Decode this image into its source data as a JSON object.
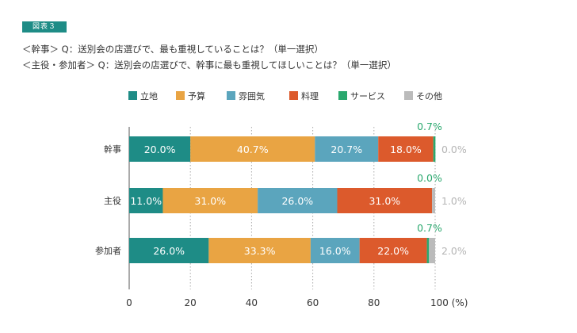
{
  "figure_label": "図表３",
  "questions": [
    "＜幹事＞ Q：送別会の店選びで、最も重視していることは？（単一選択）",
    "＜主役・参加者＞ Q：送別会の店選びで、幹事に最も重視してほしいことは？（単一選択）"
  ],
  "chart_data": {
    "type": "bar",
    "orientation": "horizontal",
    "stacked": true,
    "categories": [
      "幹事",
      "主役",
      "参加者"
    ],
    "series": [
      {
        "name": "立地",
        "color": "#1e8c86",
        "values": [
          20.0,
          11.0,
          26.0
        ],
        "labels": [
          "20.0%",
          "11.0%",
          "26.0%"
        ]
      },
      {
        "name": "予算",
        "color": "#e9a443",
        "values": [
          40.7,
          31.0,
          33.3
        ],
        "labels": [
          "40.7%",
          "31.0%",
          "33.3%"
        ]
      },
      {
        "name": "雰囲気",
        "color": "#5ba5bd",
        "values": [
          20.7,
          26.0,
          16.0
        ],
        "labels": [
          "20.7%",
          "26.0%",
          "16.0%"
        ]
      },
      {
        "name": "料理",
        "color": "#dc5a2c",
        "values": [
          18.0,
          31.0,
          22.0
        ],
        "labels": [
          "18.0%",
          "31.0%",
          "22.0%"
        ]
      },
      {
        "name": "サービス",
        "color": "#2aa86e",
        "values": [
          0.7,
          0.0,
          0.7
        ],
        "labels": [
          "0.7%",
          "0.0%",
          "0.7%"
        ]
      },
      {
        "name": "その他",
        "color": "#bbbbbb",
        "values": [
          0.0,
          1.0,
          2.0
        ],
        "labels": [
          "0.0%",
          "1.0%",
          "2.0%"
        ]
      }
    ],
    "xlim": [
      0,
      100
    ],
    "xticks": [
      "0",
      "20",
      "40",
      "60",
      "80",
      "100 (%)"
    ],
    "legend_position": "top",
    "grid": "vertical dotted"
  }
}
